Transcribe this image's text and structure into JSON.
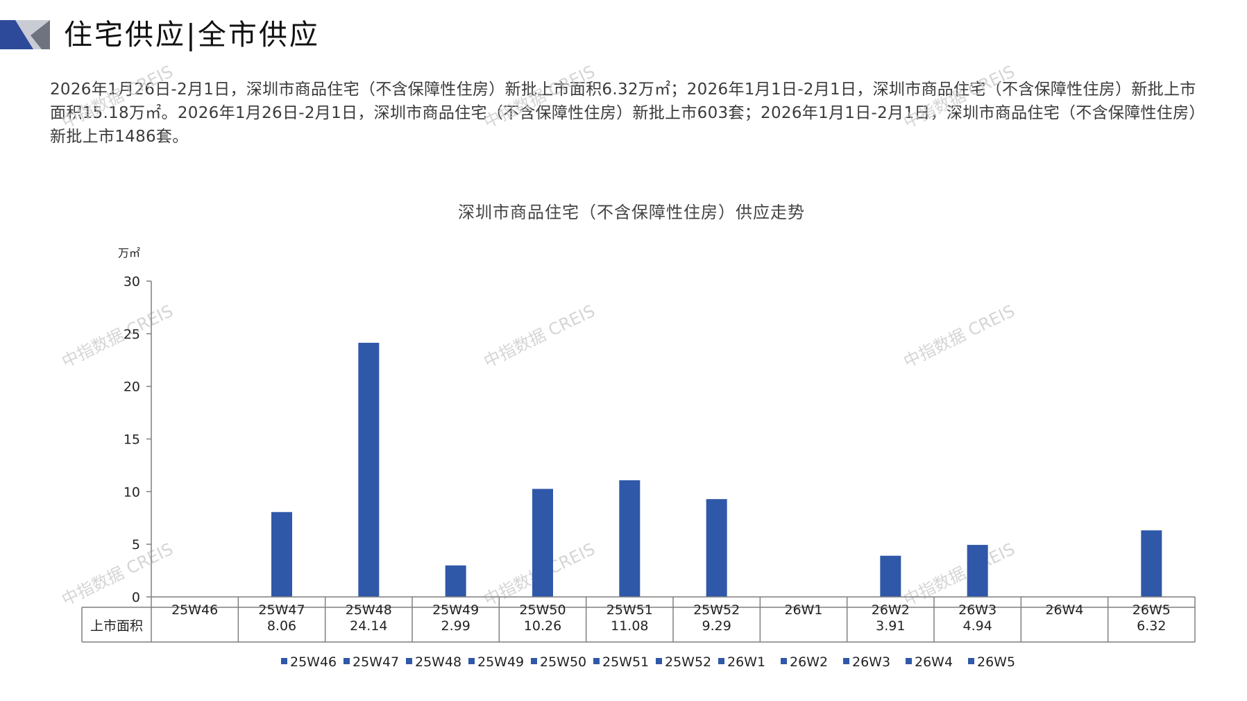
{
  "header": {
    "title": "住宅供应|全市供应"
  },
  "summary": {
    "text": "2026年1月26日-2月1日，深圳市商品住宅（不含保障性住房）新批上市面积6.32万㎡；2026年1月1日-2月1日，深圳市商品住宅（不含保障性住房）新批上市面积15.18万㎡。2026年1月26日-2月1日，深圳市商品住宅（不含保障性住房）新批上市603套；2026年1月1日-2月1日，深圳市商品住宅（不含保障性住房）新批上市1486套。"
  },
  "watermark": {
    "text": "中指数据 CREIS"
  },
  "colors": {
    "bar": "#2f58a8",
    "axis": "#7f7f7f",
    "logo_dark": "#2d4a9a",
    "logo_light": "#c9ccd4"
  },
  "chart_data": {
    "type": "bar",
    "title": "深圳市商品住宅（不含保障性住房）供应走势",
    "unit": "万㎡",
    "ylim": [
      0,
      30
    ],
    "yticks": [
      0,
      5,
      10,
      15,
      20,
      25,
      30
    ],
    "categories": [
      "25W46",
      "25W47",
      "25W48",
      "25W49",
      "25W50",
      "25W51",
      "25W52",
      "26W1",
      "26W2",
      "26W3",
      "26W4",
      "26W5"
    ],
    "series": [
      {
        "name": "上市面积",
        "values": [
          null,
          8.06,
          24.14,
          2.99,
          10.26,
          11.08,
          9.29,
          null,
          3.91,
          4.94,
          null,
          6.32
        ],
        "labels": [
          "",
          "8.06",
          "24.14",
          "2.99",
          "10.26",
          "11.08",
          "9.29",
          "",
          "3.91",
          "4.94",
          "",
          "6.32"
        ]
      }
    ],
    "legend": [
      "25W46",
      "25W47",
      "25W48",
      "25W49",
      "25W50",
      "25W51",
      "25W52",
      "26W1",
      "26W2",
      "26W3",
      "26W4",
      "26W5"
    ],
    "legend_position": "bottom",
    "grid": false,
    "data_table": true
  }
}
